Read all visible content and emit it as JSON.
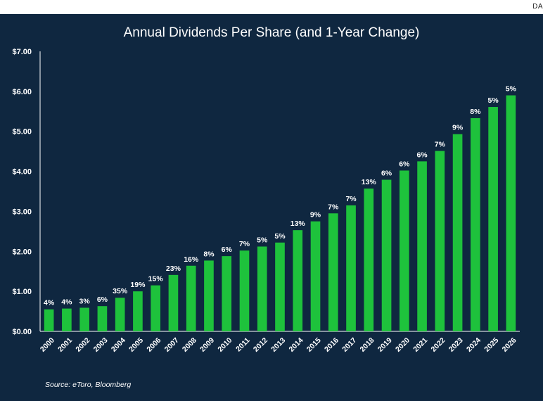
{
  "corner_tag": "DA",
  "source": "Source: eToro, Bloomberg",
  "colors": {
    "background": "#0f2740",
    "bar": "#1ec23c",
    "axis": "#ffffff",
    "text": "#ffffff"
  },
  "chart_data": {
    "type": "bar",
    "title": "Annual Dividends Per Share (and 1-Year Change)",
    "xlabel": "",
    "ylabel": "",
    "ylim": [
      0,
      7
    ],
    "yticks": [
      "$0.00",
      "$1.00",
      "$2.00",
      "$3.00",
      "$4.00",
      "$5.00",
      "$6.00",
      "$7.00"
    ],
    "categories": [
      "2000",
      "2001",
      "2002",
      "2003",
      "2004",
      "2005",
      "2006",
      "2007",
      "2008",
      "2009",
      "2010",
      "2011",
      "2012",
      "2013",
      "2014",
      "2015",
      "2016",
      "2017",
      "2018",
      "2019",
      "2020",
      "2021",
      "2022",
      "2023",
      "2024",
      "2025",
      "2026"
    ],
    "values": [
      0.55,
      0.57,
      0.59,
      0.63,
      0.84,
      1.0,
      1.15,
      1.41,
      1.64,
      1.77,
      1.88,
      2.02,
      2.12,
      2.22,
      2.53,
      2.75,
      2.95,
      3.15,
      3.57,
      3.79,
      4.02,
      4.25,
      4.51,
      4.93,
      5.33,
      5.61,
      5.9
    ],
    "labels": [
      "4%",
      "4%",
      "3%",
      "6%",
      "35%",
      "19%",
      "15%",
      "23%",
      "16%",
      "8%",
      "6%",
      "7%",
      "5%",
      "5%",
      "13%",
      "9%",
      "7%",
      "7%",
      "13%",
      "6%",
      "6%",
      "6%",
      "7%",
      "9%",
      "8%",
      "5%",
      "5%"
    ]
  }
}
